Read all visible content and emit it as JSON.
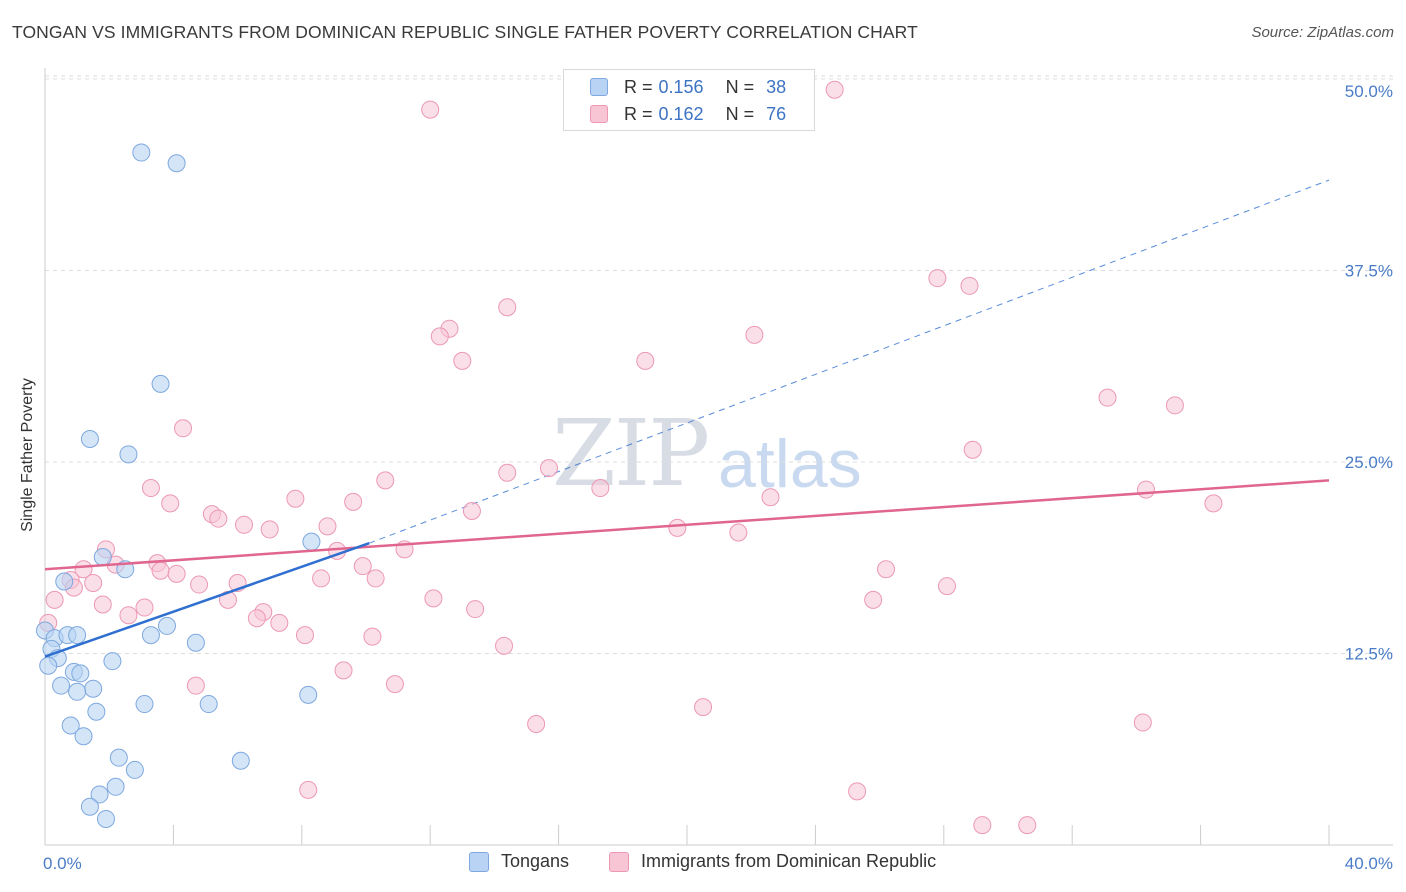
{
  "title": "TONGAN VS IMMIGRANTS FROM DOMINICAN REPUBLIC SINGLE FATHER POVERTY CORRELATION CHART",
  "source": "Source: ZipAtlas.com",
  "watermark": {
    "zip": "ZIP",
    "atlas": "atlas"
  },
  "colors": {
    "tongan_fill": "#b8d3f4",
    "tongan_stroke": "#7ea8de",
    "tongan_line": "#2f6fd0",
    "dominican_fill": "#f8c5d5",
    "dominican_stroke": "#ec98b4",
    "dominican_line": "#e06690",
    "tick_text": "#4a7cc7",
    "grid": "#dddddd"
  },
  "legend": {
    "rows": [
      {
        "r_label": "R =",
        "r_value": "0.156",
        "n_label": "N =",
        "n_value": "38"
      },
      {
        "r_label": "R =",
        "r_value": "0.162",
        "n_label": "N =",
        "n_value": "76"
      }
    ]
  },
  "bottom_legend": {
    "tongan": "Tongans",
    "dominican": "Immigrants from Dominican Republic"
  },
  "chart_data": {
    "type": "scatter",
    "title": "TONGAN VS IMMIGRANTS FROM DOMINICAN REPUBLIC SINGLE FATHER POVERTY CORRELATION CHART",
    "xlabel": "",
    "ylabel": "Single Father Poverty",
    "xlim": [
      0,
      40
    ],
    "ylim": [
      0,
      50
    ],
    "x_tick_labels": [
      "0.0%",
      "40.0%"
    ],
    "y_ticks": [
      12.5,
      25.0,
      37.5,
      50.0
    ],
    "y_tick_labels": [
      "12.5%",
      "25.0%",
      "37.5%",
      "50.0%"
    ],
    "grid": true,
    "legend_position": "top-center",
    "series": [
      {
        "name": "Tongans",
        "points": [
          [
            3.0,
            45.2
          ],
          [
            4.1,
            44.5
          ],
          [
            3.6,
            30.1
          ],
          [
            1.4,
            26.5
          ],
          [
            2.6,
            25.5
          ],
          [
            8.3,
            19.8
          ],
          [
            1.8,
            18.8
          ],
          [
            2.5,
            18.0
          ],
          [
            0.6,
            17.2
          ],
          [
            0.0,
            14.0
          ],
          [
            0.3,
            13.5
          ],
          [
            0.7,
            13.7
          ],
          [
            1.0,
            13.7
          ],
          [
            3.3,
            13.7
          ],
          [
            3.8,
            14.3
          ],
          [
            4.7,
            13.2
          ],
          [
            0.2,
            12.8
          ],
          [
            0.4,
            12.2
          ],
          [
            2.1,
            12.0
          ],
          [
            0.1,
            11.7
          ],
          [
            0.9,
            11.3
          ],
          [
            1.1,
            11.2
          ],
          [
            0.5,
            10.4
          ],
          [
            1.5,
            10.2
          ],
          [
            1.0,
            10.0
          ],
          [
            8.2,
            9.8
          ],
          [
            3.1,
            9.2
          ],
          [
            5.1,
            9.2
          ],
          [
            1.6,
            8.7
          ],
          [
            0.8,
            7.8
          ],
          [
            1.2,
            7.1
          ],
          [
            2.3,
            5.7
          ],
          [
            6.1,
            5.5
          ],
          [
            2.8,
            4.9
          ],
          [
            2.2,
            3.8
          ],
          [
            1.7,
            3.3
          ],
          [
            1.4,
            2.5
          ],
          [
            1.9,
            1.7
          ]
        ],
        "trend": {
          "x": [
            0,
            10.1
          ],
          "y": [
            12.3,
            19.7
          ]
        }
      },
      {
        "name": "Immigrants from Dominican Republic",
        "points": [
          [
            24.6,
            49.3
          ],
          [
            12.0,
            48.0
          ],
          [
            27.8,
            37.0
          ],
          [
            28.8,
            36.5
          ],
          [
            14.4,
            35.1
          ],
          [
            12.6,
            33.7
          ],
          [
            12.3,
            33.2
          ],
          [
            22.1,
            33.3
          ],
          [
            18.7,
            31.6
          ],
          [
            13.0,
            31.6
          ],
          [
            33.1,
            29.2
          ],
          [
            35.2,
            28.7
          ],
          [
            4.3,
            27.2
          ],
          [
            28.9,
            25.8
          ],
          [
            15.7,
            24.6
          ],
          [
            14.4,
            24.3
          ],
          [
            10.6,
            23.8
          ],
          [
            3.3,
            23.3
          ],
          [
            17.3,
            23.3
          ],
          [
            34.3,
            23.2
          ],
          [
            22.6,
            22.7
          ],
          [
            7.8,
            22.6
          ],
          [
            3.9,
            22.3
          ],
          [
            9.6,
            22.4
          ],
          [
            36.4,
            22.3
          ],
          [
            13.3,
            21.8
          ],
          [
            5.2,
            21.6
          ],
          [
            5.4,
            21.3
          ],
          [
            6.2,
            20.9
          ],
          [
            8.8,
            20.8
          ],
          [
            7.0,
            20.6
          ],
          [
            19.7,
            20.7
          ],
          [
            21.6,
            20.4
          ],
          [
            1.9,
            19.3
          ],
          [
            11.2,
            19.3
          ],
          [
            9.1,
            19.2
          ],
          [
            3.5,
            18.4
          ],
          [
            2.2,
            18.3
          ],
          [
            9.9,
            18.2
          ],
          [
            1.2,
            18.0
          ],
          [
            26.2,
            18.0
          ],
          [
            3.6,
            17.9
          ],
          [
            4.1,
            17.7
          ],
          [
            8.6,
            17.4
          ],
          [
            10.3,
            17.4
          ],
          [
            0.8,
            17.3
          ],
          [
            1.5,
            17.1
          ],
          [
            6.0,
            17.1
          ],
          [
            4.8,
            17.0
          ],
          [
            0.9,
            16.8
          ],
          [
            28.1,
            16.9
          ],
          [
            0.3,
            16.0
          ],
          [
            12.1,
            16.1
          ],
          [
            5.7,
            16.0
          ],
          [
            25.8,
            16.0
          ],
          [
            1.8,
            15.7
          ],
          [
            3.1,
            15.5
          ],
          [
            13.4,
            15.4
          ],
          [
            6.8,
            15.2
          ],
          [
            2.6,
            15.0
          ],
          [
            6.6,
            14.8
          ],
          [
            7.3,
            14.5
          ],
          [
            0.1,
            14.5
          ],
          [
            8.1,
            13.7
          ],
          [
            10.2,
            13.6
          ],
          [
            14.3,
            13.0
          ],
          [
            9.3,
            11.4
          ],
          [
            4.7,
            10.4
          ],
          [
            10.9,
            10.5
          ],
          [
            20.5,
            9.0
          ],
          [
            15.3,
            7.9
          ],
          [
            34.2,
            8.0
          ],
          [
            8.2,
            3.6
          ],
          [
            25.3,
            3.5
          ],
          [
            29.2,
            1.3
          ],
          [
            30.6,
            1.3
          ]
        ],
        "trend": {
          "x": [
            0,
            40
          ],
          "y": [
            18.0,
            23.8
          ]
        }
      }
    ],
    "tongan_trend_extension": {
      "x": [
        10.1,
        40
      ],
      "y": [
        19.7,
        43.4
      ]
    }
  }
}
